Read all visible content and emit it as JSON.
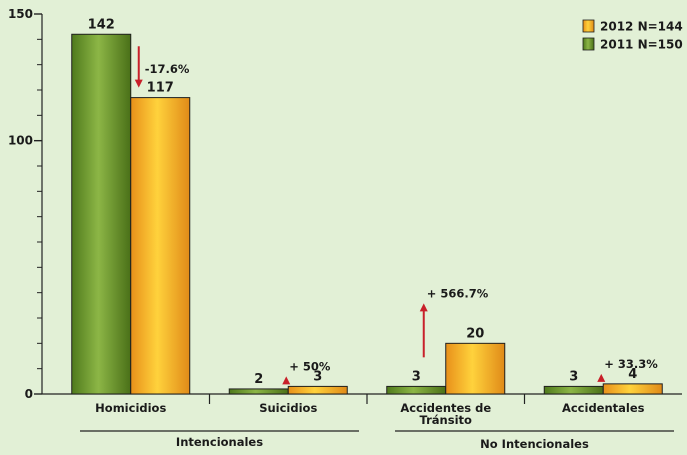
{
  "chart_data": {
    "type": "bar",
    "categories": [
      "Homicidios",
      "Suicidios",
      "Accidentes de Tránsito",
      "Accidentales"
    ],
    "category_lines": [
      [
        "Homicidios"
      ],
      [
        "Suicidios"
      ],
      [
        "Accidentes de",
        "Tránsito"
      ],
      [
        "Accidentales"
      ]
    ],
    "groups": [
      {
        "label": "Intencionales",
        "categories": [
          0,
          1
        ]
      },
      {
        "label": "No Intencionales",
        "categories": [
          2,
          3
        ]
      }
    ],
    "series": [
      {
        "name": "2011 N=150",
        "values": [
          142,
          2,
          3,
          3
        ],
        "color": "#6e9a2e"
      },
      {
        "name": "2012 N=144",
        "values": [
          117,
          3,
          20,
          4
        ],
        "color": "#f0a020"
      }
    ],
    "changes": [
      {
        "category": 0,
        "label": "-17.6%",
        "direction": "down"
      },
      {
        "category": 1,
        "label": "+ 50%",
        "direction": "up"
      },
      {
        "category": 2,
        "label": "+ 566.7%",
        "direction": "up"
      },
      {
        "category": 3,
        "label": "+ 33.3%",
        "direction": "up"
      }
    ],
    "ylim": [
      0,
      150
    ],
    "yticks": [
      0,
      100,
      150
    ],
    "legend": {
      "placement": "top-right",
      "order": [
        "2012 N=144",
        "2011 N=150"
      ]
    },
    "grid": false,
    "title": "",
    "xlabel": "",
    "ylabel": "",
    "arrow_color": "#c8202a"
  }
}
